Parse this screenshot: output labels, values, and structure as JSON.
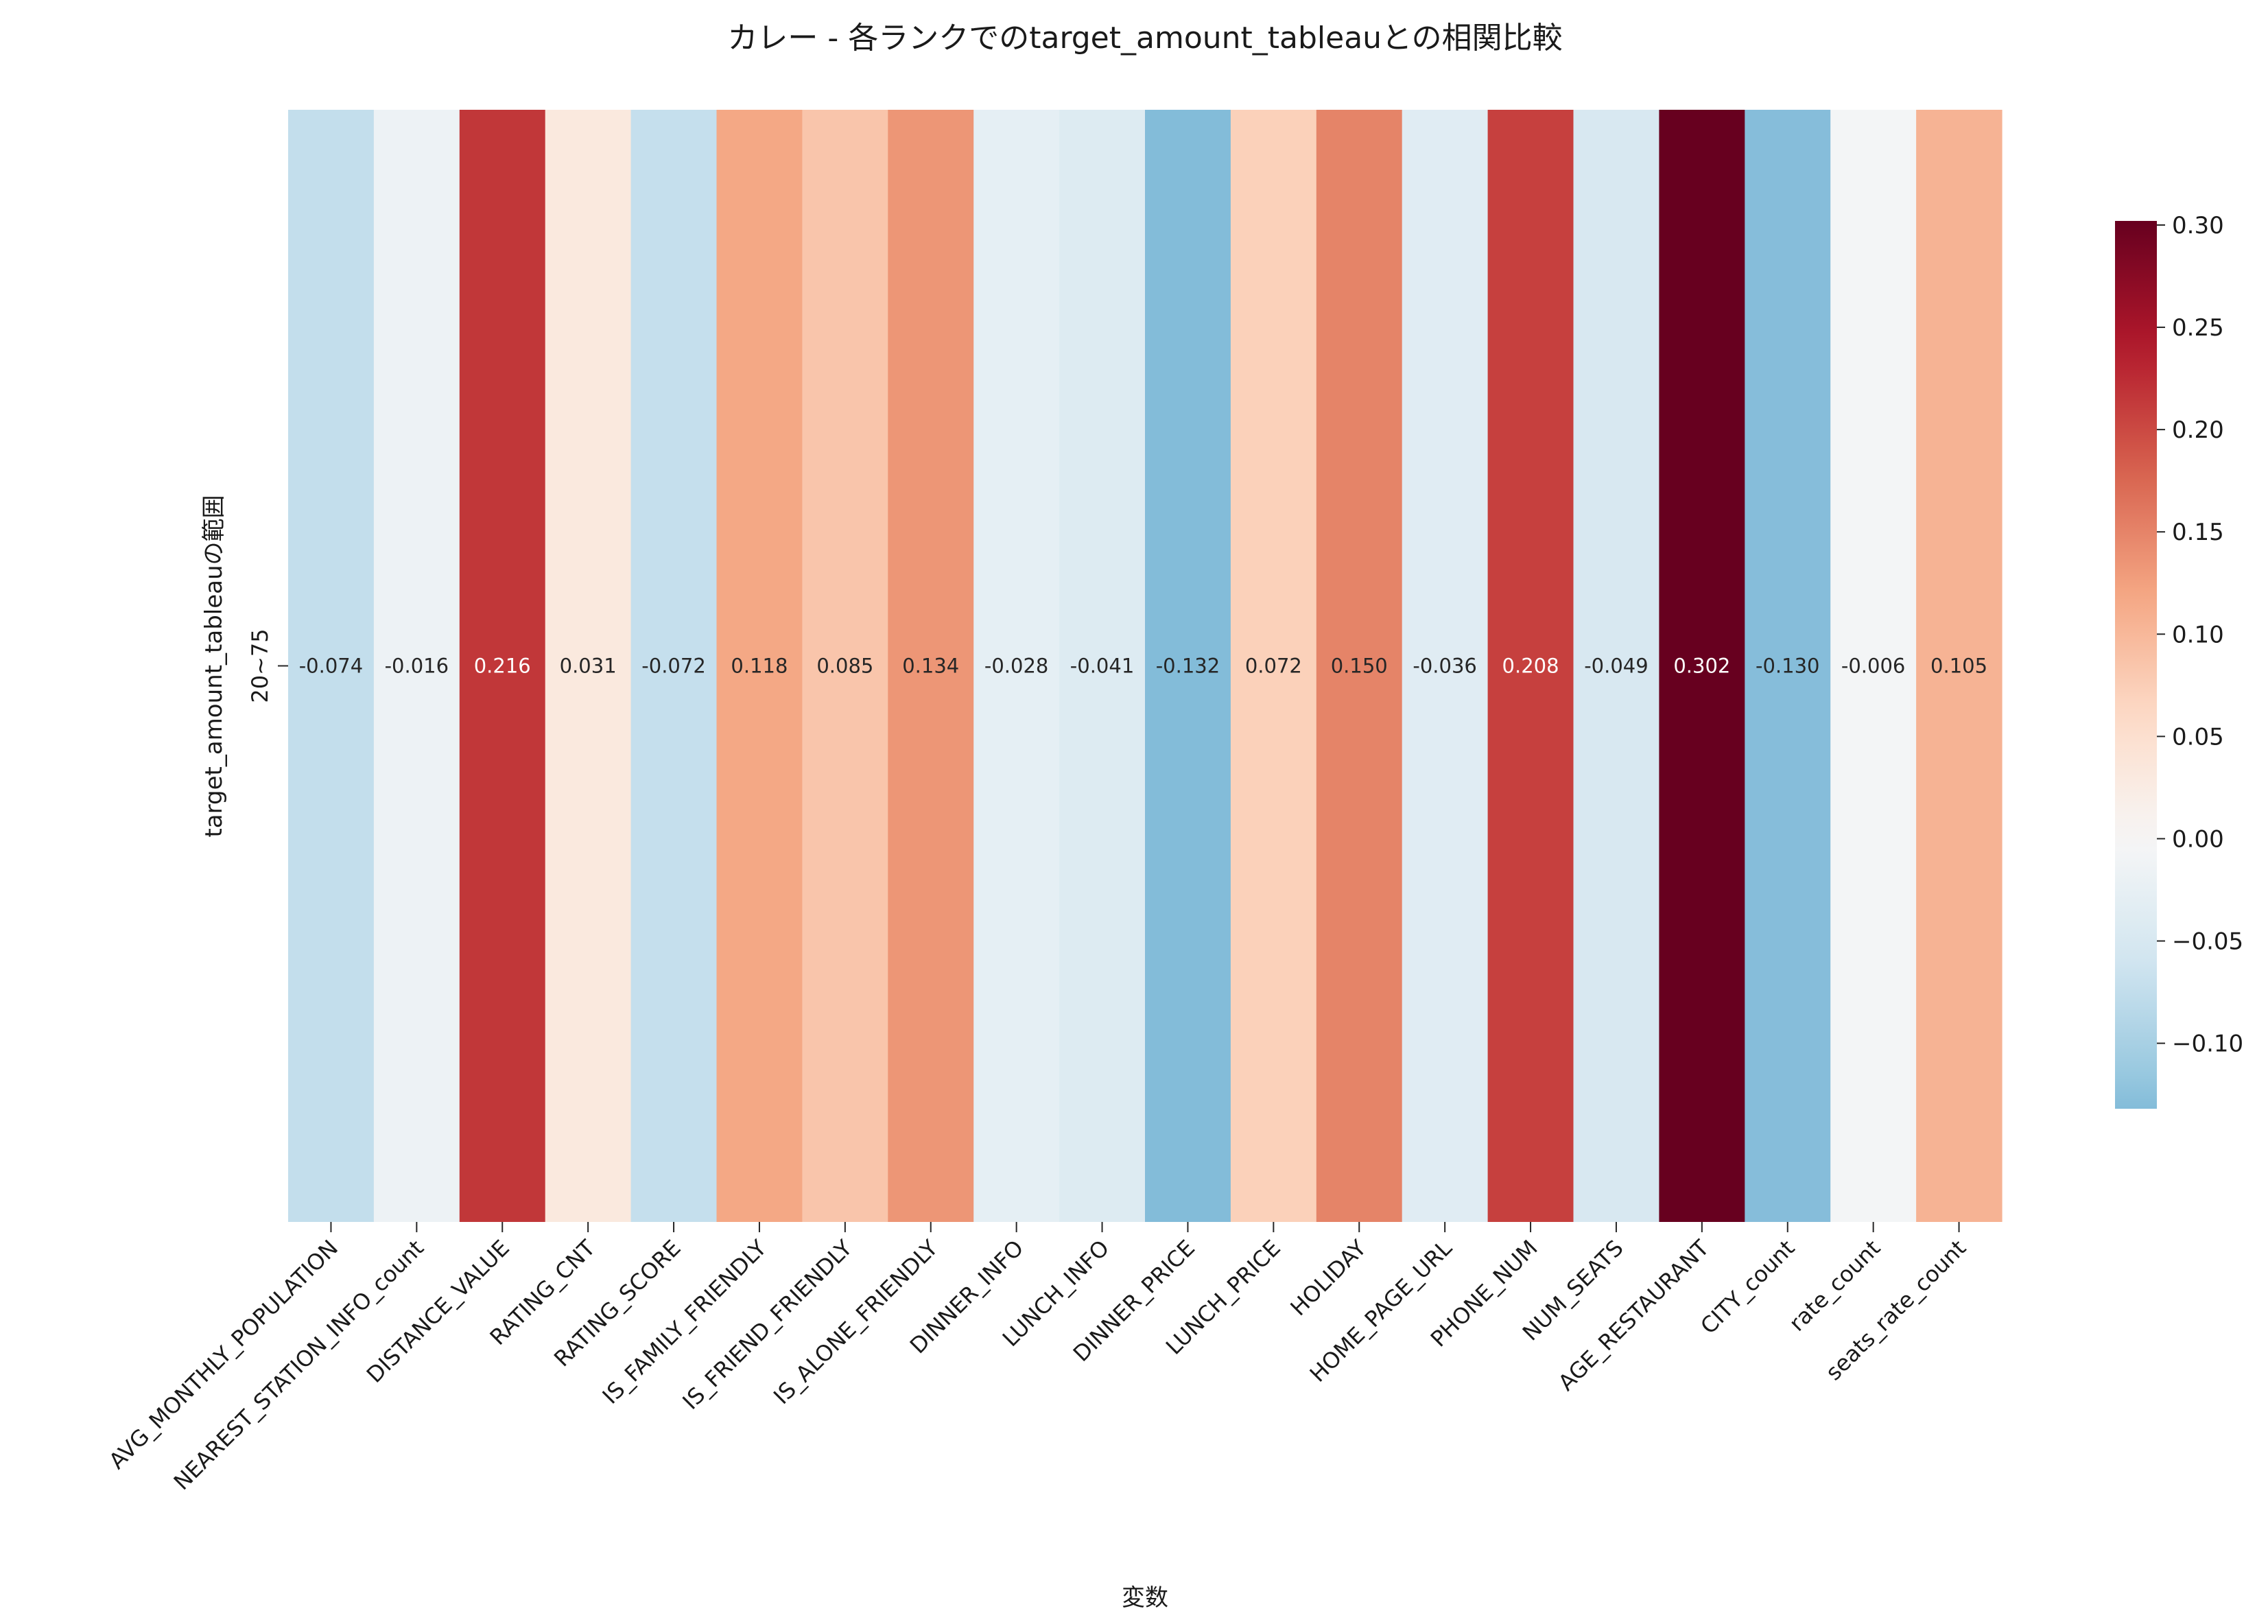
{
  "chart_data": {
    "type": "heatmap",
    "title": "カレー - 各ランクでのtarget_amount_tableauとの相関比較",
    "xlabel": "変数",
    "ylabel": "target_amount_tableauの範囲",
    "row_labels": [
      "20~75"
    ],
    "categories": [
      "AVG_MONTHLY_POPULATION",
      "NEAREST_STATION_INFO_count",
      "DISTANCE_VALUE",
      "RATING_CNT",
      "RATING_SCORE",
      "IS_FAMILY_FRIENDLY",
      "IS_FRIEND_FRIENDLY",
      "IS_ALONE_FRIENDLY",
      "DINNER_INFO",
      "LUNCH_INFO",
      "DINNER_PRICE",
      "LUNCH_PRICE",
      "HOLIDAY",
      "HOME_PAGE_URL",
      "PHONE_NUM",
      "NUM_SEATS",
      "AGE_RESTAURANT",
      "CITY_count",
      "rate_count",
      "seats_rate_count"
    ],
    "values": [
      [
        -0.074,
        -0.016,
        0.216,
        0.031,
        -0.072,
        0.118,
        0.085,
        0.134,
        -0.028,
        -0.041,
        -0.132,
        0.072,
        0.15,
        -0.036,
        0.208,
        -0.049,
        0.302,
        -0.13,
        -0.006,
        0.105
      ]
    ],
    "value_labels": [
      "-0.074",
      "-0.016",
      "0.216",
      "0.031",
      "-0.072",
      "0.118",
      "0.085",
      "0.134",
      "-0.028",
      "-0.041",
      "-0.132",
      "0.072",
      "0.150",
      "-0.036",
      "0.208",
      "-0.049",
      "0.302",
      "-0.130",
      "-0.006",
      "0.105"
    ],
    "colormap": "RdBu_r",
    "center": 0,
    "vmin": -0.132,
    "vmax": 0.302,
    "colorbar_ticks": [
      -0.1,
      -0.05,
      0.0,
      0.05,
      0.1,
      0.15,
      0.2,
      0.25,
      0.3
    ],
    "colorbar_tick_labels": [
      "−0.10",
      "−0.05",
      "0.00",
      "0.05",
      "0.10",
      "0.15",
      "0.20",
      "0.25",
      "0.30"
    ],
    "legend": "colorbar, right"
  }
}
